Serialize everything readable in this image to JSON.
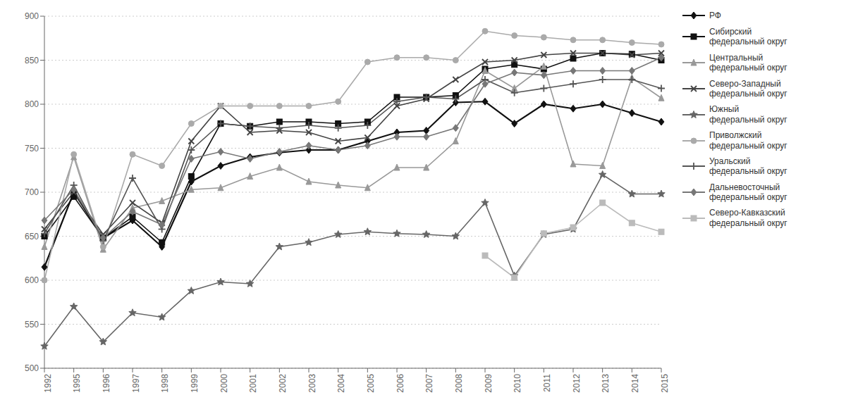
{
  "chart_data": {
    "type": "line",
    "categories": [
      "1992",
      "1995",
      "1996",
      "1997",
      "1998",
      "1999",
      "2000",
      "2001",
      "2002",
      "2003",
      "2004",
      "2005",
      "2006",
      "2007",
      "2008",
      "2009",
      "2010",
      "2011",
      "2012",
      "2013",
      "2014",
      "2015"
    ],
    "series": [
      {
        "name": "РФ",
        "color": "#111111",
        "marker": "diamond",
        "values": [
          615,
          700,
          648,
          668,
          638,
          712,
          730,
          740,
          745,
          748,
          748,
          758,
          768,
          770,
          802,
          803,
          778,
          800,
          795,
          800,
          790,
          780
        ]
      },
      {
        "name": "Сибирский\nфедеральный округ",
        "color": "#111111",
        "marker": "square",
        "values": [
          650,
          695,
          648,
          672,
          643,
          718,
          778,
          775,
          780,
          780,
          778,
          780,
          808,
          808,
          810,
          840,
          845,
          840,
          852,
          858,
          857,
          850
        ]
      },
      {
        "name": "Центральный\nфедеральный округ",
        "color": "#999999",
        "marker": "triangle",
        "values": [
          638,
          740,
          635,
          682,
          690,
          703,
          705,
          718,
          728,
          712,
          708,
          705,
          728,
          728,
          758,
          838,
          818,
          843,
          732,
          730,
          830,
          807
        ]
      },
      {
        "name": "Северо-Западный\nфедеральный округ",
        "color": "#444444",
        "marker": "x",
        "values": [
          658,
          700,
          652,
          688,
          665,
          758,
          798,
          768,
          770,
          768,
          758,
          762,
          798,
          806,
          828,
          848,
          850,
          856,
          858,
          858,
          856,
          858
        ]
      },
      {
        "name": "Южный\nфедеральный округ",
        "color": "#666666",
        "marker": "star",
        "values": [
          525,
          570,
          530,
          563,
          558,
          588,
          598,
          596,
          638,
          643,
          652,
          655,
          653,
          652,
          650,
          688,
          605,
          652,
          658,
          720,
          698,
          698
        ]
      },
      {
        "name": "Приволжский\nфедеральный округ",
        "color": "#aaaaaa",
        "marker": "circle",
        "values": [
          600,
          743,
          638,
          743,
          730,
          778,
          798,
          798,
          798,
          798,
          803,
          848,
          853,
          853,
          850,
          883,
          878,
          876,
          873,
          873,
          870,
          868
        ]
      },
      {
        "name": "Уральский\nфедеральный округ",
        "color": "#555555",
        "marker": "plus",
        "values": [
          653,
          708,
          645,
          716,
          658,
          748,
          778,
          775,
          773,
          776,
          773,
          776,
          803,
          808,
          806,
          828,
          813,
          818,
          823,
          828,
          828,
          818
        ]
      },
      {
        "name": "Дальневосточный\nфедеральный округ",
        "color": "#777777",
        "marker": "diamond",
        "values": [
          668,
          703,
          648,
          678,
          663,
          738,
          746,
          738,
          746,
          753,
          748,
          753,
          763,
          763,
          773,
          823,
          836,
          833,
          838,
          838,
          838,
          853
        ]
      },
      {
        "name": "Северо-Кавказский\nфедеральный округ",
        "color": "#bbbbbb",
        "marker": "square",
        "values": [
          null,
          null,
          null,
          null,
          null,
          null,
          null,
          null,
          null,
          null,
          null,
          null,
          null,
          null,
          null,
          628,
          603,
          653,
          660,
          688,
          665,
          655
        ]
      }
    ],
    "ylim": [
      500,
      900
    ],
    "yticks": [
      500,
      550,
      600,
      650,
      700,
      750,
      800,
      850,
      900
    ],
    "grid": true,
    "legend": "right"
  }
}
